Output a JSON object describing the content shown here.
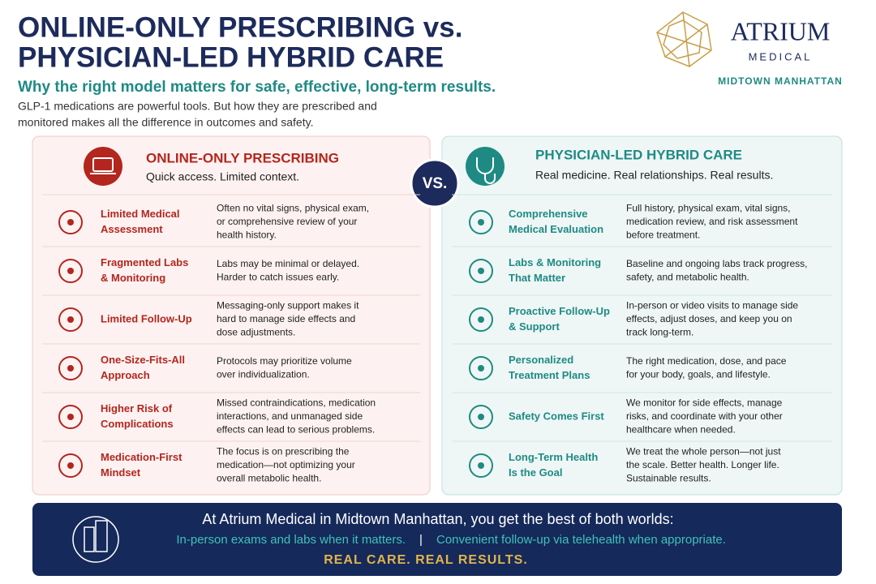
{
  "header": {
    "title_lines": [
      "ONLINE-ONLY PRESCRIBING vs.",
      "PHYSICIAN-LED HYBRID CARE"
    ],
    "subtitle": "Why the right model matters for safe, effective, long-term results.",
    "intro_lines": [
      "GLP-1 medications are powerful tools. But how they are prescribed and",
      "monitored makes all the difference in outcomes and safety."
    ]
  },
  "logo": {
    "name": "ATRIUM",
    "sub": "MEDICAL",
    "location": "MIDTOWN MANHATTAN"
  },
  "vs": "VS.",
  "left": {
    "title": "ONLINE-ONLY PRESCRIBING",
    "tagline": "Quick access. Limited context.",
    "rows": [
      {
        "label_lines": [
          "Limited Medical",
          "Assessment"
        ],
        "desc_lines": [
          "Often no vital signs, physical exam,",
          "or comprehensive review of your",
          "health history."
        ]
      },
      {
        "label_lines": [
          "Fragmented Labs",
          "& Monitoring"
        ],
        "desc_lines": [
          "Labs may be minimal or delayed.",
          "Harder to catch issues early."
        ]
      },
      {
        "label_lines": [
          "Limited Follow-Up"
        ],
        "desc_lines": [
          "Messaging-only support makes it",
          "hard to manage side effects and",
          "dose adjustments."
        ]
      },
      {
        "label_lines": [
          "One-Size-Fits-All",
          "Approach"
        ],
        "desc_lines": [
          "Protocols may prioritize volume",
          "over individualization."
        ]
      },
      {
        "label_lines": [
          "Higher Risk of",
          "Complications"
        ],
        "desc_lines": [
          "Missed contraindications, medication",
          "interactions, and unmanaged side",
          "effects can lead to serious problems."
        ]
      },
      {
        "label_lines": [
          "Medication-First",
          "Mindset"
        ],
        "desc_lines": [
          "The focus is on prescribing the",
          "medication—not optimizing your",
          "overall metabolic health."
        ]
      }
    ]
  },
  "right": {
    "title": "PHYSICIAN-LED HYBRID CARE",
    "tagline": "Real medicine. Real relationships. Real results.",
    "rows": [
      {
        "label_lines": [
          "Comprehensive",
          "Medical Evaluation"
        ],
        "desc_lines": [
          "Full history, physical exam, vital signs,",
          "medication review, and risk assessment",
          "before treatment."
        ]
      },
      {
        "label_lines": [
          "Labs & Monitoring",
          "That Matter"
        ],
        "desc_lines": [
          "Baseline and ongoing labs track progress,",
          "safety, and metabolic health."
        ]
      },
      {
        "label_lines": [
          "Proactive Follow-Up",
          "& Support"
        ],
        "desc_lines": [
          "In-person or video visits to manage side",
          "effects, adjust doses, and keep you on",
          "track long-term."
        ]
      },
      {
        "label_lines": [
          "Personalized",
          "Treatment Plans"
        ],
        "desc_lines": [
          "The right medication, dose, and pace",
          "for your body, goals, and lifestyle."
        ]
      },
      {
        "label_lines": [
          "Safety Comes First"
        ],
        "desc_lines": [
          "We monitor for side effects, manage",
          "risks, and coordinate with your other",
          "healthcare when needed."
        ]
      },
      {
        "label_lines": [
          "Long-Term Health",
          "Is the Goal"
        ],
        "desc_lines": [
          "We treat the whole person—not just",
          "the scale. Better health. Longer life.",
          "Sustainable results."
        ]
      }
    ]
  },
  "footer": {
    "line1": "At Atrium Medical in Midtown Manhattan,  you get the best of both worlds:",
    "line2": [
      "In-person exams and labs when it matters.",
      "|",
      "Convenient follow-up via telehealth when appropriate."
    ],
    "line3": "REAL CARE. REAL RESULTS."
  }
}
